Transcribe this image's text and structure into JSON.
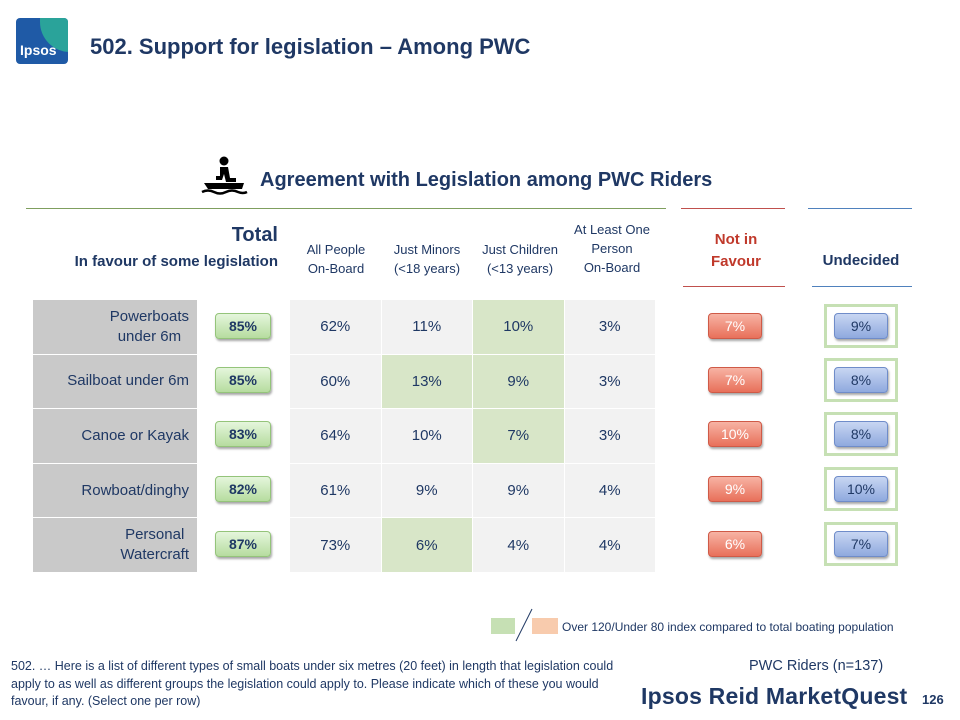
{
  "header": {
    "logo_text": "Ipsos",
    "title": "502. Support for legislation – Among PWC"
  },
  "subtitle": {
    "icon": "jet-ski-icon",
    "text": "Agreement with Legislation among PWC Riders"
  },
  "total": {
    "title": "Total",
    "subtitle": "In favour of some legislation"
  },
  "columns": {
    "all_people": [
      "All People",
      "On-Board"
    ],
    "just_minors": [
      "Just Minors",
      "(<18 years)"
    ],
    "just_children": [
      "Just Children",
      "(<13 years)"
    ],
    "at_least_one": [
      "At Least One",
      "Person",
      "On-Board"
    ],
    "not_in_favour": [
      "Not in",
      "Favour"
    ],
    "undecided": "Undecided"
  },
  "rows": [
    {
      "label": [
        "Powerboats",
        "under 6m"
      ],
      "total": "85%",
      "all": "62%",
      "minors": "11%",
      "children": "10%",
      "one": "3%",
      "not_favour": "7%",
      "undecided": "9%"
    },
    {
      "label": [
        "Sailboat under 6m"
      ],
      "total": "85%",
      "all": "60%",
      "minors": "13%",
      "children": "9%",
      "one": "3%",
      "not_favour": "7%",
      "undecided": "8%"
    },
    {
      "label": [
        "Canoe or Kayak"
      ],
      "total": "83%",
      "all": "64%",
      "minors": "10%",
      "children": "7%",
      "one": "3%",
      "not_favour": "10%",
      "undecided": "8%"
    },
    {
      "label": [
        "Rowboat/dinghy"
      ],
      "total": "82%",
      "all": "61%",
      "minors": "9%",
      "children": "9%",
      "one": "4%",
      "not_favour": "9%",
      "undecided": "10%"
    },
    {
      "label": [
        "Personal",
        "Watercraft"
      ],
      "total": "87%",
      "all": "73%",
      "minors": "6%",
      "children": "4%",
      "one": "4%",
      "not_favour": "6%",
      "undecided": "7%"
    }
  ],
  "highlights": {
    "color_over": "#c6e0b4",
    "color_under": "#f8cbad",
    "cells": [
      [
        0,
        "children"
      ],
      [
        1,
        "minors"
      ],
      [
        1,
        "children"
      ],
      [
        2,
        "children"
      ],
      [
        4,
        "minors"
      ]
    ]
  },
  "legend": {
    "text": "Over 120/Under 80 index compared to total boating population"
  },
  "footnote": "502. … Here is a list of different types of small boats under six metres (20 feet) in length that legislation could apply to as well as different groups the legislation could apply to. Please indicate which of these you would favour, if any. (Select one per row)",
  "sample": "PWC Riders (n=137)",
  "brand": "Ipsos Reid MarketQuest",
  "page_number": "126",
  "colors": {
    "navy": "#1f3864",
    "accent_red": "#c0392b",
    "green_pill": "#b6dc9f",
    "red_pill": "#e8705a",
    "blue_pill": "#8fa9de"
  }
}
